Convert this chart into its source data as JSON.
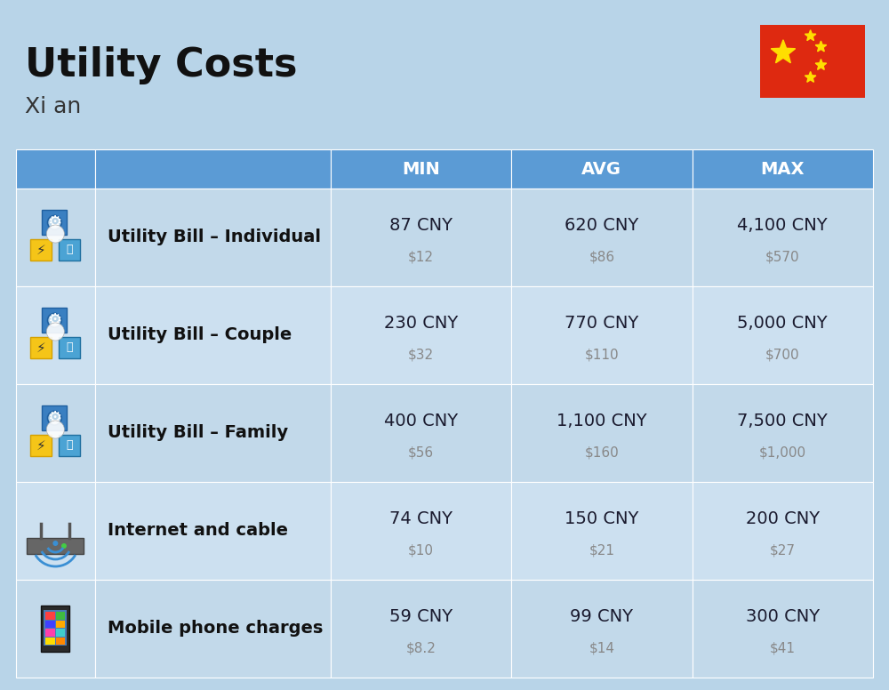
{
  "title": "Utility Costs",
  "subtitle": "Xi an",
  "background_color": "#b8d4e8",
  "header_color": "#5b9bd5",
  "header_text_color": "#ffffff",
  "columns": [
    "MIN",
    "AVG",
    "MAX"
  ],
  "rows": [
    {
      "label": "Utility Bill – Individual",
      "icon": "utility",
      "min_cny": "87 CNY",
      "min_usd": "$12",
      "avg_cny": "620 CNY",
      "avg_usd": "$86",
      "max_cny": "4,100 CNY",
      "max_usd": "$570"
    },
    {
      "label": "Utility Bill – Couple",
      "icon": "utility",
      "min_cny": "230 CNY",
      "min_usd": "$32",
      "avg_cny": "770 CNY",
      "avg_usd": "$110",
      "max_cny": "5,000 CNY",
      "max_usd": "$700"
    },
    {
      "label": "Utility Bill – Family",
      "icon": "utility",
      "min_cny": "400 CNY",
      "min_usd": "$56",
      "avg_cny": "1,100 CNY",
      "avg_usd": "$160",
      "max_cny": "7,500 CNY",
      "max_usd": "$1,000"
    },
    {
      "label": "Internet and cable",
      "icon": "internet",
      "min_cny": "74 CNY",
      "min_usd": "$10",
      "avg_cny": "150 CNY",
      "avg_usd": "$21",
      "max_cny": "200 CNY",
      "max_usd": "$27"
    },
    {
      "label": "Mobile phone charges",
      "icon": "mobile",
      "min_cny": "59 CNY",
      "min_usd": "$8.2",
      "avg_cny": "99 CNY",
      "avg_usd": "$14",
      "max_cny": "300 CNY",
      "max_usd": "$41"
    }
  ],
  "flag_red": "#de2910",
  "flag_yellow": "#ffde00",
  "row_colors": [
    "#c2d9ea",
    "#cce0f0"
  ],
  "text_dark": "#1a1a2e",
  "text_gray": "#888888",
  "text_label": "#111111",
  "title_fontsize": 32,
  "subtitle_fontsize": 18,
  "header_fontsize": 14,
  "label_fontsize": 14,
  "value_fontsize": 14,
  "usd_fontsize": 11
}
